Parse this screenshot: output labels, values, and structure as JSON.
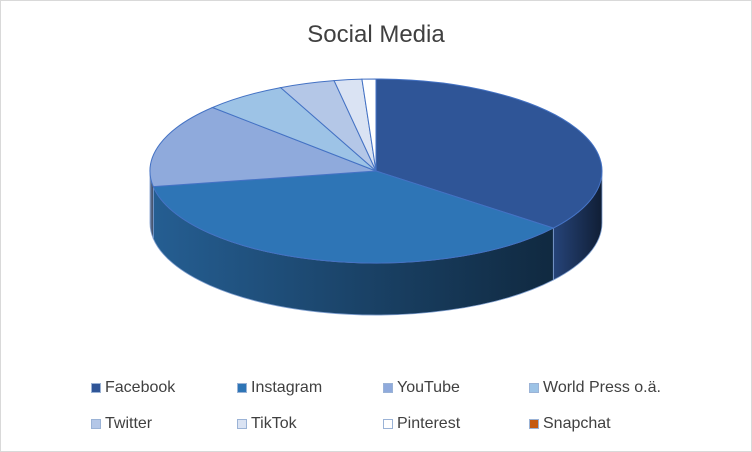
{
  "chart_data": {
    "type": "pie",
    "title": "Social Media",
    "is_3d": true,
    "legend_position": "bottom",
    "categories": [
      "Facebook",
      "Instagram",
      "YouTube",
      "World Press o.ä.",
      "Twitter",
      "TikTok",
      "Pinterest",
      "Snapchat"
    ],
    "values": [
      36,
      37,
      15,
      6,
      4,
      2,
      1,
      0
    ],
    "colors": [
      "#2f5597",
      "#2e75b6",
      "#8faadc",
      "#9dc3e6",
      "#b4c7e7",
      "#dae3f3",
      "#ffffff",
      "#c55a11"
    ]
  }
}
